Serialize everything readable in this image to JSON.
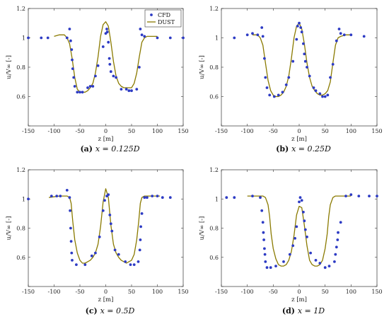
{
  "chart_data": [
    {
      "type": "line",
      "caption_label": "(a)",
      "caption_math": "x = 0.125D",
      "xlabel": "z [m]",
      "ylabel": "u/V∞ [-]",
      "xlim": [
        -150,
        150
      ],
      "ylim": [
        0.4,
        1.2
      ],
      "xticks": [
        -150,
        -100,
        -50,
        0,
        50,
        100,
        150
      ],
      "yticks": [
        0.4,
        0.6,
        0.8,
        1,
        1.2
      ],
      "ytick_labels": [
        "",
        "0.6",
        "0.8",
        "1",
        "1.2"
      ],
      "grid": false,
      "legend": {
        "position": "top-right",
        "entries": [
          "CFD",
          "DUST"
        ]
      },
      "series": [
        {
          "name": "CFD",
          "style": "markers",
          "color": "#2d3bc4",
          "x": [
            -150,
            -125,
            -112,
            -75,
            -70,
            -68,
            -66,
            -65,
            -64,
            -62,
            -60,
            -55,
            -50,
            -45,
            -35,
            -30,
            -25,
            -20,
            -15,
            -5,
            0,
            2,
            3,
            5,
            7,
            8,
            10,
            15,
            20,
            30,
            40,
            45,
            50,
            60,
            65,
            67,
            70,
            75,
            100,
            125,
            150
          ],
          "y": [
            1.0,
            1.0,
            1.0,
            1.0,
            1.06,
            0.98,
            0.92,
            0.85,
            0.79,
            0.73,
            0.67,
            0.63,
            0.63,
            0.63,
            0.66,
            0.67,
            0.67,
            0.74,
            0.81,
            0.94,
            1.03,
            1.06,
            1.04,
            0.97,
            0.86,
            0.82,
            0.77,
            0.74,
            0.73,
            0.65,
            0.65,
            0.64,
            0.64,
            0.65,
            0.8,
            1.06,
            1.02,
            1.01,
            1.0,
            1.0,
            1.0
          ]
        },
        {
          "name": "DUST",
          "style": "line",
          "color": "#8a7a00",
          "x": [
            -100,
            -90,
            -80,
            -75,
            -70,
            -65,
            -60,
            -55,
            -50,
            -45,
            -40,
            -35,
            -30,
            -25,
            -20,
            -15,
            -10,
            -5,
            0,
            5,
            10,
            15,
            20,
            25,
            30,
            35,
            40,
            45,
            50,
            55,
            60,
            65,
            70,
            75,
            80,
            90,
            100
          ],
          "y": [
            1.01,
            1.02,
            1.02,
            1.0,
            0.96,
            0.86,
            0.73,
            0.65,
            0.63,
            0.63,
            0.63,
            0.64,
            0.66,
            0.69,
            0.76,
            0.87,
            1.01,
            1.09,
            1.11,
            1.08,
            0.97,
            0.84,
            0.74,
            0.69,
            0.67,
            0.66,
            0.66,
            0.66,
            0.66,
            0.69,
            0.76,
            0.87,
            0.97,
            1.0,
            1.01,
            1.01,
            1.01
          ]
        }
      ]
    },
    {
      "type": "line",
      "caption_label": "(b)",
      "caption_math": "x = 0.25D",
      "xlabel": "z [m]",
      "ylabel": "u/V∞ [-]",
      "xlim": [
        -150,
        150
      ],
      "ylim": [
        0.4,
        1.2
      ],
      "xticks": [
        -150,
        -100,
        -50,
        0,
        50,
        100,
        150
      ],
      "yticks": [
        0.4,
        0.6,
        0.8,
        1,
        1.2
      ],
      "ytick_labels": [
        "",
        "0.6",
        "0.8",
        "1",
        "1.2"
      ],
      "grid": false,
      "series": [
        {
          "name": "CFD",
          "style": "markers",
          "color": "#2d3bc4",
          "x": [
            -125,
            -100,
            -90,
            -80,
            -72,
            -70,
            -67,
            -65,
            -62,
            -57,
            -48,
            -40,
            -32,
            -25,
            -20,
            -12,
            -5,
            -3,
            0,
            3,
            5,
            8,
            10,
            12,
            15,
            20,
            28,
            32,
            40,
            45,
            50,
            55,
            60,
            65,
            72,
            77,
            80,
            87,
            100,
            125
          ],
          "y": [
            1.0,
            1.02,
            1.03,
            1.02,
            1.07,
            1.01,
            0.86,
            0.73,
            0.66,
            0.61,
            0.6,
            0.61,
            0.63,
            0.68,
            0.73,
            0.84,
            0.99,
            1.08,
            1.1,
            1.07,
            1.04,
            0.96,
            0.89,
            0.84,
            0.8,
            0.74,
            0.66,
            0.64,
            0.62,
            0.6,
            0.6,
            0.61,
            0.73,
            0.82,
            0.98,
            1.06,
            1.03,
            1.02,
            1.02,
            1.01
          ]
        },
        {
          "name": "DUST",
          "style": "line",
          "color": "#8a7a00",
          "x": [
            -90,
            -80,
            -75,
            -70,
            -65,
            -60,
            -55,
            -50,
            -45,
            -40,
            -35,
            -30,
            -25,
            -20,
            -15,
            -10,
            -5,
            0,
            5,
            10,
            15,
            20,
            25,
            30,
            35,
            40,
            45,
            50,
            55,
            60,
            65,
            70,
            75,
            80,
            90,
            100
          ],
          "y": [
            1.02,
            1.02,
            1.0,
            0.95,
            0.83,
            0.71,
            0.64,
            0.61,
            0.6,
            0.6,
            0.61,
            0.63,
            0.67,
            0.74,
            0.86,
            1.0,
            1.08,
            1.1,
            1.06,
            0.96,
            0.83,
            0.73,
            0.67,
            0.64,
            0.62,
            0.61,
            0.61,
            0.62,
            0.64,
            0.7,
            0.83,
            0.95,
            1.0,
            1.01,
            1.02,
            1.02
          ]
        }
      ]
    },
    {
      "type": "line",
      "caption_label": "(c)",
      "caption_math": "x = 0.5D",
      "xlabel": "z [m]",
      "ylabel": "u/V∞ [-]",
      "xlim": [
        -150,
        150
      ],
      "ylim": [
        0.4,
        1.2
      ],
      "xticks": [
        -150,
        -100,
        -50,
        0,
        50,
        100,
        150
      ],
      "yticks": [
        0.4,
        0.6,
        0.8,
        1,
        1.2
      ],
      "ytick_labels": [
        "",
        "0.6",
        "0.8",
        "1",
        "1.2"
      ],
      "grid": false,
      "series": [
        {
          "name": "CFD",
          "style": "markers",
          "color": "#2d3bc4",
          "x": [
            -150,
            -105,
            -95,
            -88,
            -75,
            -70,
            -69,
            -68,
            -67,
            -66,
            -65,
            -57,
            -40,
            -27,
            -20,
            -12,
            -5,
            -2,
            2,
            5,
            8,
            10,
            12,
            18,
            25,
            38,
            48,
            55,
            63,
            66,
            67,
            68,
            70,
            75,
            80,
            90,
            100,
            110,
            125
          ],
          "y": [
            1.0,
            1.02,
            1.02,
            1.02,
            1.06,
            1.01,
            0.92,
            0.8,
            0.71,
            0.63,
            0.58,
            0.55,
            0.55,
            0.61,
            0.63,
            0.74,
            0.92,
            0.99,
            1.02,
            1.03,
            0.89,
            0.83,
            0.78,
            0.65,
            0.62,
            0.57,
            0.55,
            0.55,
            0.57,
            0.65,
            0.72,
            0.81,
            0.9,
            1.01,
            1.01,
            1.02,
            1.02,
            1.01,
            1.01
          ]
        },
        {
          "name": "DUST",
          "style": "line",
          "color": "#8a7a00",
          "x": [
            -110,
            -90,
            -75,
            -70,
            -67,
            -64,
            -60,
            -55,
            -50,
            -45,
            -40,
            -35,
            -30,
            -25,
            -20,
            -15,
            -10,
            -5,
            0,
            5,
            10,
            15,
            20,
            25,
            30,
            35,
            40,
            45,
            50,
            55,
            60,
            64,
            67,
            70,
            75,
            90,
            105
          ],
          "y": [
            1.01,
            1.02,
            1.02,
            1.01,
            0.97,
            0.85,
            0.72,
            0.63,
            0.58,
            0.56,
            0.56,
            0.57,
            0.58,
            0.6,
            0.63,
            0.69,
            0.81,
            0.98,
            1.07,
            1.01,
            0.82,
            0.69,
            0.63,
            0.6,
            0.58,
            0.57,
            0.56,
            0.57,
            0.58,
            0.62,
            0.72,
            0.85,
            0.97,
            1.01,
            1.02,
            1.02,
            1.02
          ]
        }
      ]
    },
    {
      "type": "line",
      "caption_label": "(d)",
      "caption_math": "x = 1D",
      "xlabel": "z [m]",
      "ylabel": "u/V∞ [-]",
      "xlim": [
        -150,
        150
      ],
      "ylim": [
        0.4,
        1.2
      ],
      "xticks": [
        -150,
        -100,
        -50,
        0,
        50,
        100,
        150
      ],
      "yticks": [
        0.4,
        0.6,
        0.8,
        1,
        1.2
      ],
      "ytick_labels": [
        "",
        "0.6",
        "0.8",
        "1",
        "1.2"
      ],
      "grid": false,
      "series": [
        {
          "name": "CFD",
          "style": "markers",
          "color": "#2d3bc4",
          "x": [
            -140,
            -125,
            -90,
            -75,
            -72,
            -70,
            -69,
            -68,
            -67,
            -66,
            -65,
            -62,
            -55,
            -45,
            -30,
            -18,
            -12,
            -8,
            -5,
            0,
            2,
            5,
            8,
            10,
            12,
            15,
            22,
            32,
            40,
            50,
            58,
            68,
            70,
            72,
            74,
            75,
            80,
            90,
            100,
            115,
            135,
            150
          ],
          "y": [
            1.01,
            1.01,
            1.02,
            1.01,
            0.92,
            0.84,
            0.77,
            0.72,
            0.66,
            0.62,
            0.57,
            0.53,
            0.53,
            0.54,
            0.57,
            0.62,
            0.68,
            0.73,
            0.81,
            0.98,
            1.01,
            0.99,
            0.91,
            0.85,
            0.79,
            0.74,
            0.63,
            0.58,
            0.56,
            0.53,
            0.54,
            0.57,
            0.62,
            0.67,
            0.72,
            0.77,
            0.84,
            1.02,
            1.03,
            1.02,
            1.02,
            1.02
          ]
        },
        {
          "name": "DUST",
          "style": "line",
          "color": "#8a7a00",
          "x": [
            -100,
            -85,
            -70,
            -65,
            -60,
            -57,
            -54,
            -50,
            -45,
            -40,
            -35,
            -30,
            -25,
            -20,
            -15,
            -10,
            -5,
            0,
            5,
            10,
            15,
            20,
            25,
            30,
            35,
            40,
            45,
            50,
            54,
            57,
            60,
            65,
            70,
            75,
            80,
            90,
            100
          ],
          "y": [
            1.02,
            1.02,
            1.02,
            1.01,
            0.96,
            0.88,
            0.76,
            0.66,
            0.59,
            0.55,
            0.54,
            0.54,
            0.55,
            0.58,
            0.64,
            0.75,
            0.89,
            0.95,
            0.94,
            0.82,
            0.68,
            0.58,
            0.55,
            0.54,
            0.54,
            0.55,
            0.58,
            0.66,
            0.76,
            0.88,
            0.96,
            1.01,
            1.02,
            1.02,
            1.02,
            1.02,
            1.02
          ]
        }
      ]
    }
  ]
}
